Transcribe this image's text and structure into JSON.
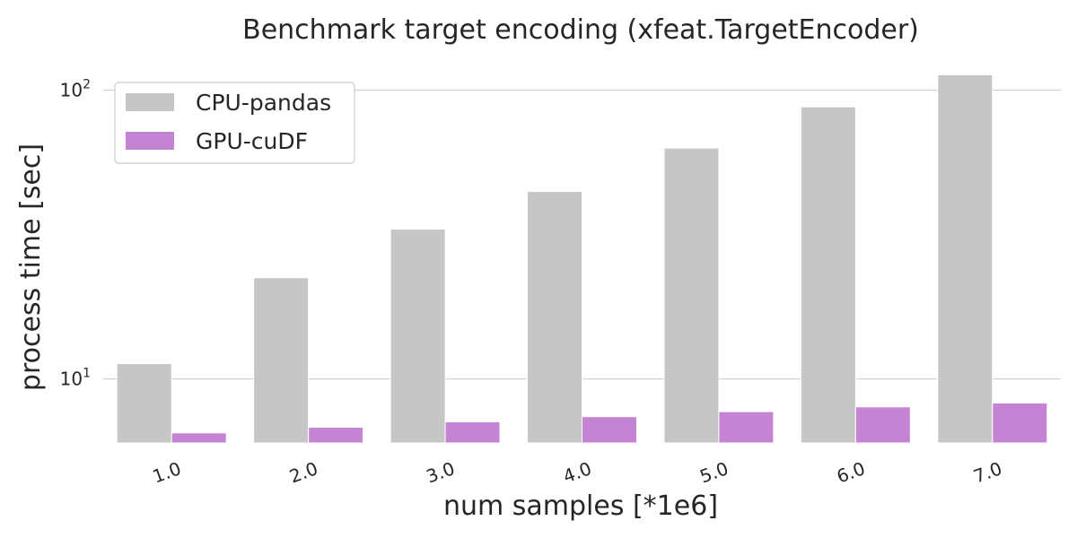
{
  "chart_data": {
    "type": "bar",
    "title": "Benchmark target encoding (xfeat.TargetEncoder)",
    "xlabel": "num samples [*1e6]",
    "ylabel": "process time [sec]",
    "yscale": "log",
    "ylim": [
      6.0,
      120
    ],
    "grid": "horizontal",
    "legend_position": "top-left",
    "categories": [
      "1.0",
      "2.0",
      "3.0",
      "4.0",
      "5.0",
      "6.0",
      "7.0"
    ],
    "yticks": [
      {
        "value": 10,
        "base": "10",
        "exp": "1"
      },
      {
        "value": 100,
        "base": "10",
        "exp": "2"
      }
    ],
    "series": [
      {
        "name": "CPU-pandas",
        "color": "#c6c6c6",
        "values": [
          11.3,
          22.4,
          33.0,
          44.6,
          63.0,
          87.5,
          113.0
        ]
      },
      {
        "name": "GPU-cuDF",
        "color": "#c584d3",
        "values": [
          6.5,
          6.8,
          7.1,
          7.4,
          7.7,
          8.0,
          8.25
        ]
      }
    ]
  }
}
